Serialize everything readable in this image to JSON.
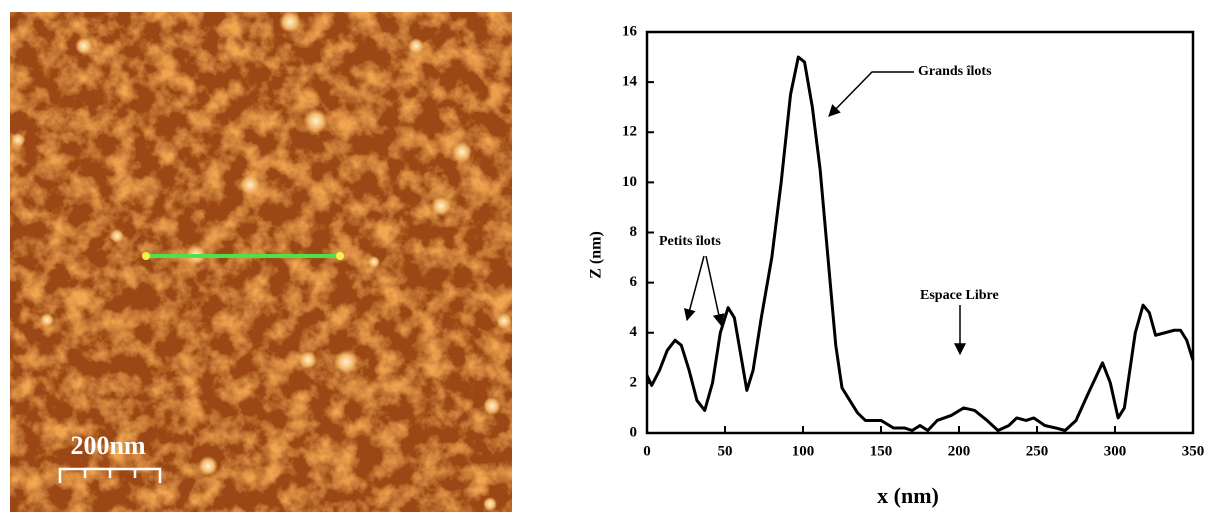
{
  "image": {
    "scale_label": "200nm"
  },
  "chart_data": {
    "type": "line",
    "x_label": "x (nm)",
    "y_label": "Z (nm)",
    "annotations": [
      "Grands îlots",
      "Petits îlots",
      "Espace Libre"
    ],
    "x": [
      0,
      3,
      8,
      13,
      18,
      22,
      27,
      32,
      37,
      42,
      47,
      52,
      56,
      61,
      64,
      68,
      73,
      80,
      86,
      92,
      97,
      101,
      106,
      111,
      116,
      121,
      125,
      130,
      135,
      140,
      150,
      158,
      165,
      170,
      175,
      180,
      186,
      195,
      203,
      210,
      218,
      225,
      232,
      237,
      243,
      248,
      255,
      262,
      268,
      275,
      283,
      292,
      297,
      302,
      306,
      313,
      318,
      322,
      326,
      332,
      338,
      342,
      346,
      350
    ],
    "series": [
      {
        "color": "#000000",
        "values": [
          2.3,
          1.9,
          2.5,
          3.3,
          3.7,
          3.5,
          2.5,
          1.3,
          0.9,
          2.0,
          4.0,
          5.0,
          4.6,
          2.8,
          1.7,
          2.5,
          4.5,
          7.0,
          10.0,
          13.5,
          15.0,
          14.8,
          13.0,
          10.5,
          7.0,
          3.5,
          1.8,
          1.3,
          0.8,
          0.5,
          0.5,
          0.2,
          0.2,
          0.1,
          0.3,
          0.1,
          0.5,
          0.7,
          1.0,
          0.9,
          0.5,
          0.1,
          0.3,
          0.6,
          0.5,
          0.6,
          0.3,
          0.2,
          0.1,
          0.5,
          1.6,
          2.8,
          2.0,
          0.6,
          1.0,
          4.0,
          5.1,
          4.8,
          3.9,
          4.0,
          4.1,
          4.1,
          3.7,
          2.9
        ]
      }
    ],
    "xlim": [
      0,
      350
    ],
    "xticks": [
      0,
      50,
      100,
      150,
      200,
      250,
      300,
      350
    ],
    "ylim": [
      0,
      16
    ],
    "yticks": [
      0,
      2,
      4,
      6,
      8,
      10,
      12,
      14,
      16
    ]
  }
}
